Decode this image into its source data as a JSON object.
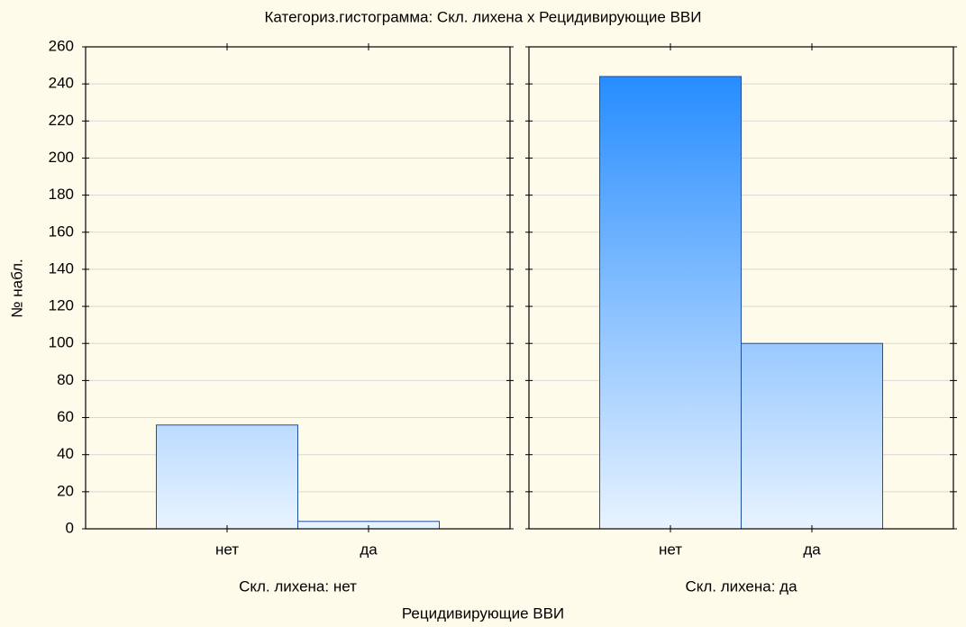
{
  "chart_data": {
    "type": "bar",
    "title": "Категориз.гистограмма: Скл. лихена x Рецидивирующие ВВИ",
    "y_label": "№ набл.",
    "x_label": "Рецидивирующие ВВИ",
    "ylim": [
      0,
      260
    ],
    "yticks": [
      0,
      20,
      40,
      60,
      80,
      100,
      120,
      140,
      160,
      180,
      200,
      220,
      240,
      260
    ],
    "grid": true,
    "gradient": [
      "#1a86ff",
      "#e8f3ff"
    ],
    "edge_color": "#1f4fa0",
    "panels": [
      {
        "subtitle": "Скл. лихена: нет",
        "categories": [
          "нет",
          "да"
        ],
        "values": [
          56,
          4
        ]
      },
      {
        "subtitle": "Скл. лихена: да",
        "categories": [
          "нет",
          "да"
        ],
        "values": [
          244,
          100
        ]
      }
    ]
  }
}
